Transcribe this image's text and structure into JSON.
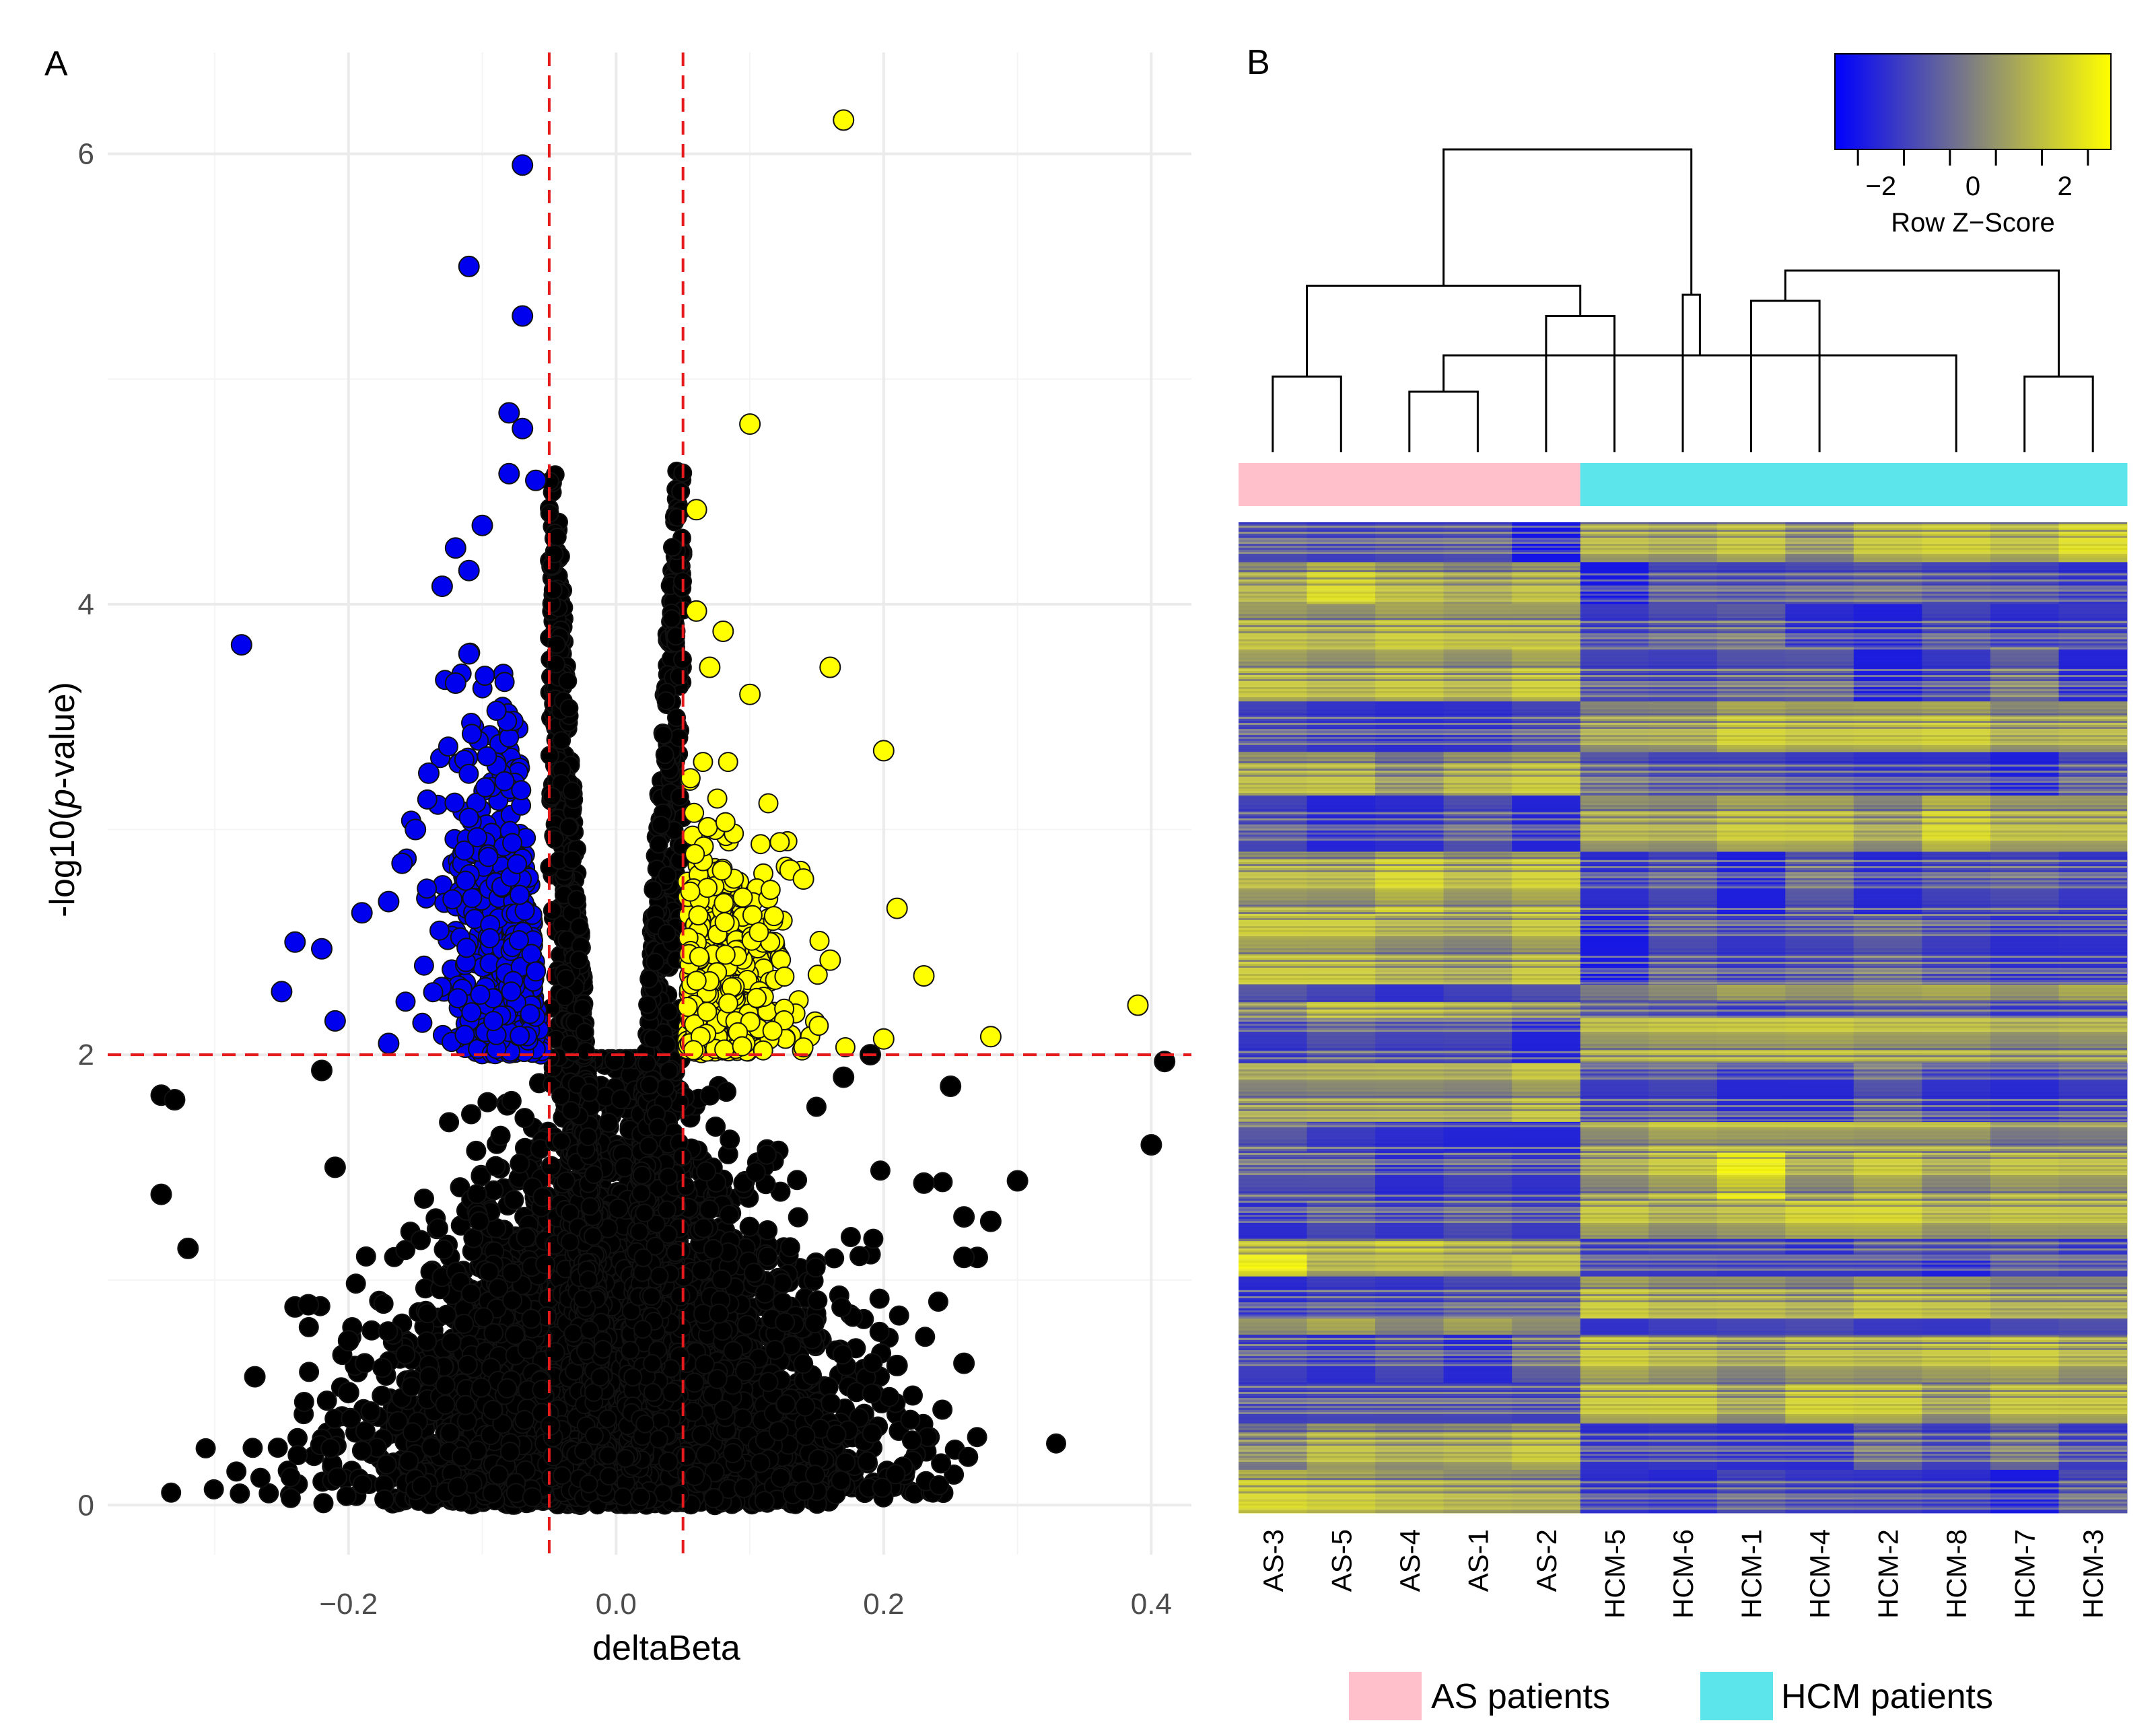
{
  "panel_a_label": "A",
  "panel_b_label": "B",
  "chart_data": [
    {
      "type": "scatter",
      "subtype": "volcano",
      "xlabel": "deltaBeta",
      "ylabel_prefix": "-log10(",
      "ylabel_italic": "p",
      "ylabel_suffix": "-value)",
      "xlim": [
        -0.38,
        0.43
      ],
      "ylim": [
        -0.22,
        6.45
      ],
      "x_ticks": [
        -0.2,
        0.0,
        0.2,
        0.4
      ],
      "x_tick_labels": [
        "−0.2",
        "0.0",
        "0.2",
        "0.4"
      ],
      "y_ticks": [
        0,
        2,
        4,
        6
      ],
      "y_tick_labels": [
        "0",
        "2",
        "4",
        "6"
      ],
      "thresholds": {
        "deltaBeta": [
          -0.05,
          0.05
        ],
        "neg_log10_p": 2
      },
      "colors": {
        "hypo": "#0000ee",
        "hyper": "#ffff00",
        "ns": "#000000",
        "threshold": "#e41a1c"
      },
      "labeled_points": {
        "hypo": [
          {
            "x": -0.07,
            "y": 5.95
          },
          {
            "x": -0.11,
            "y": 5.5
          },
          {
            "x": -0.07,
            "y": 5.28
          },
          {
            "x": -0.08,
            "y": 4.85
          },
          {
            "x": -0.07,
            "y": 4.78
          },
          {
            "x": -0.08,
            "y": 4.58
          },
          {
            "x": -0.06,
            "y": 4.55
          },
          {
            "x": -0.1,
            "y": 4.35
          },
          {
            "x": -0.12,
            "y": 4.25
          },
          {
            "x": -0.11,
            "y": 4.15
          },
          {
            "x": -0.13,
            "y": 4.08
          },
          {
            "x": -0.28,
            "y": 3.82
          },
          {
            "x": -0.11,
            "y": 3.78
          },
          {
            "x": -0.12,
            "y": 3.65
          },
          {
            "x": -0.14,
            "y": 3.25
          },
          {
            "x": -0.15,
            "y": 3.0
          },
          {
            "x": -0.16,
            "y": 2.85
          },
          {
            "x": -0.17,
            "y": 2.68
          },
          {
            "x": -0.19,
            "y": 2.63
          },
          {
            "x": -0.24,
            "y": 2.5
          },
          {
            "x": -0.22,
            "y": 2.47
          },
          {
            "x": -0.25,
            "y": 2.28
          },
          {
            "x": -0.21,
            "y": 2.15
          },
          {
            "x": -0.17,
            "y": 2.05
          }
        ],
        "hyper": [
          {
            "x": 0.17,
            "y": 6.15
          },
          {
            "x": 0.1,
            "y": 4.8
          },
          {
            "x": 0.06,
            "y": 4.42
          },
          {
            "x": 0.06,
            "y": 3.97
          },
          {
            "x": 0.08,
            "y": 3.88
          },
          {
            "x": 0.07,
            "y": 3.72
          },
          {
            "x": 0.16,
            "y": 3.72
          },
          {
            "x": 0.1,
            "y": 3.6
          },
          {
            "x": 0.2,
            "y": 3.35
          },
          {
            "x": 0.13,
            "y": 2.82
          },
          {
            "x": 0.14,
            "y": 2.78
          },
          {
            "x": 0.21,
            "y": 2.65
          },
          {
            "x": 0.16,
            "y": 2.42
          },
          {
            "x": 0.23,
            "y": 2.35
          },
          {
            "x": 0.39,
            "y": 2.22
          },
          {
            "x": 0.28,
            "y": 2.08
          },
          {
            "x": 0.2,
            "y": 2.07
          }
        ],
        "ns_outliers": [
          {
            "x": -0.34,
            "y": 1.82
          },
          {
            "x": -0.33,
            "y": 1.8
          },
          {
            "x": -0.34,
            "y": 1.38
          },
          {
            "x": -0.32,
            "y": 1.14
          },
          {
            "x": -0.27,
            "y": 0.57
          },
          {
            "x": -0.24,
            "y": 0.88
          },
          {
            "x": -0.23,
            "y": 0.89
          },
          {
            "x": -0.2,
            "y": 0.73
          },
          {
            "x": -0.2,
            "y": 0.5
          },
          {
            "x": -0.21,
            "y": 1.5
          },
          {
            "x": -0.22,
            "y": 1.93
          },
          {
            "x": 0.41,
            "y": 1.97
          },
          {
            "x": 0.4,
            "y": 1.6
          },
          {
            "x": 0.3,
            "y": 1.44
          },
          {
            "x": 0.28,
            "y": 1.26
          },
          {
            "x": 0.27,
            "y": 1.1
          },
          {
            "x": 0.26,
            "y": 1.1
          },
          {
            "x": 0.25,
            "y": 1.86
          },
          {
            "x": 0.26,
            "y": 0.63
          },
          {
            "x": 0.26,
            "y": 1.28
          },
          {
            "x": 0.23,
            "y": 1.43
          },
          {
            "x": 0.21,
            "y": 0.62
          },
          {
            "x": 0.19,
            "y": 2.0
          },
          {
            "x": 0.17,
            "y": 1.9
          }
        ]
      }
    },
    {
      "type": "heatmap",
      "samples": [
        "AS-3",
        "AS-5",
        "AS-4",
        "AS-1",
        "AS-2",
        "HCM-5",
        "HCM-6",
        "HCM-1",
        "HCM-4",
        "HCM-2",
        "HCM-8",
        "HCM-7",
        "HCM-3"
      ],
      "groups": [
        "AS patients",
        "AS patients",
        "AS patients",
        "AS patients",
        "AS patients",
        "HCM patients",
        "HCM patients",
        "HCM patients",
        "HCM patients",
        "HCM patients",
        "HCM patients",
        "HCM patients",
        "HCM patients"
      ],
      "group_colors": {
        "AS patients": "#ffc0cb",
        "HCM patients": "#5ce6eb"
      },
      "color_scale": {
        "low": "#0000ff",
        "mid": "#808080",
        "high": "#ffff00",
        "range": [
          -3,
          3
        ]
      },
      "color_key_title": "Row Z−Score",
      "color_key_ticks": [
        -2,
        0,
        2
      ],
      "color_key_tick_labels": [
        "−2",
        "0",
        "2"
      ],
      "dendrogram": {
        "merges": [
          [
            3,
            4
          ],
          [
            1,
            2
          ],
          [
            12,
            13
          ],
          [
            11,
            14
          ],
          [
            5,
            6
          ],
          [
            8,
            9
          ],
          [
            7,
            17
          ],
          [
            15,
            18
          ],
          [
            16,
            19
          ],
          [
            20,
            21
          ]
        ],
        "heights": [
          0.2,
          0.25,
          0.25,
          0.32,
          0.45,
          0.5,
          0.52,
          0.55,
          0.6,
          1.0
        ]
      }
    }
  ],
  "legend": [
    "AS patients",
    "HCM patients"
  ]
}
